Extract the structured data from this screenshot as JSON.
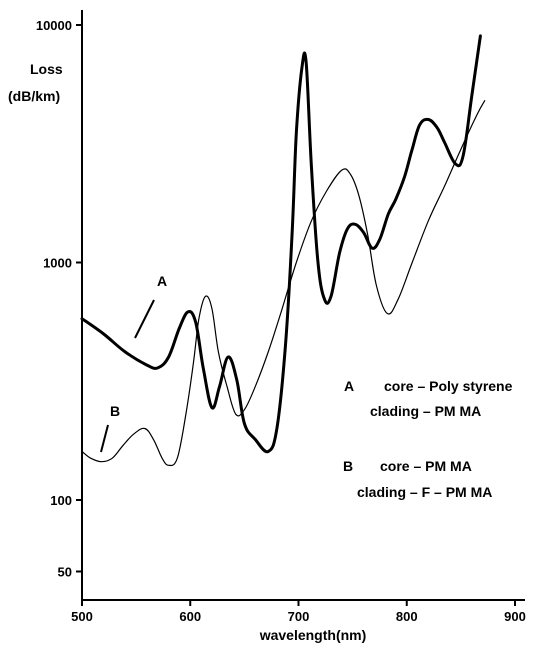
{
  "chart_data": {
    "type": "line",
    "title": "",
    "xlabel": "wavelength(nm)",
    "ylabel": "Loss\n(dB/km)",
    "xlim": [
      500,
      900
    ],
    "ylim": [
      40,
      10000
    ],
    "y_scale": "log",
    "grid": false,
    "x_ticks": [
      500,
      600,
      700,
      800,
      900
    ],
    "y_ticks": [
      50,
      100,
      1000,
      10000
    ],
    "x_tick_labels": [
      "500",
      "600",
      "700",
      "800",
      "900"
    ],
    "y_tick_labels": [
      "50",
      "100",
      "1000",
      "10000"
    ],
    "series": [
      {
        "name": "A",
        "color": "#000000",
        "style": "thick",
        "x": [
          500,
          520,
          540,
          560,
          570,
          580,
          590,
          598,
          605,
          612,
          620,
          627,
          635,
          643,
          650,
          660,
          672,
          680,
          688,
          694,
          698,
          703,
          707,
          712,
          718,
          724,
          730,
          738,
          745,
          752,
          760,
          768,
          775,
          783,
          790,
          798,
          805,
          812,
          820,
          828,
          835,
          845,
          852,
          860,
          868
        ],
        "y": [
          580,
          500,
          420,
          370,
          360,
          400,
          530,
          620,
          560,
          360,
          245,
          300,
          400,
          320,
          210,
          180,
          160,
          200,
          450,
          1300,
          3500,
          6500,
          7000,
          2500,
          1000,
          700,
          720,
          1100,
          1380,
          1450,
          1340,
          1150,
          1250,
          1600,
          1850,
          2300,
          3000,
          3800,
          4000,
          3700,
          3200,
          2600,
          2800,
          5000,
          9000
        ]
      },
      {
        "name": "B",
        "color": "#000000",
        "style": "thin",
        "x": [
          500,
          508,
          518,
          528,
          538,
          548,
          558,
          566,
          574,
          580,
          588,
          596,
          603,
          608,
          614,
          620,
          626,
          634,
          642,
          650,
          660,
          672,
          684,
          698,
          712,
          726,
          740,
          748,
          756,
          764,
          772,
          782,
          792,
          805,
          820,
          835,
          850,
          865,
          872
        ],
        "y": [
          160,
          150,
          145,
          150,
          170,
          190,
          200,
          180,
          150,
          140,
          150,
          230,
          380,
          580,
          720,
          640,
          420,
          300,
          230,
          240,
          300,
          420,
          620,
          1000,
          1500,
          2000,
          2450,
          2350,
          1900,
          1300,
          800,
          610,
          700,
          1000,
          1500,
          2100,
          3000,
          4200,
          4800
        ]
      }
    ],
    "annotations": {
      "curve_a_label": "A",
      "curve_b_label": "B",
      "legend_a_letter": "A",
      "legend_a_core": "core – Poly styrene",
      "legend_a_clad": "clading – PM MA",
      "legend_b_letter": "B",
      "legend_b_core": "core – PM MA",
      "legend_b_clad": "clading –  F – PM MA"
    }
  }
}
